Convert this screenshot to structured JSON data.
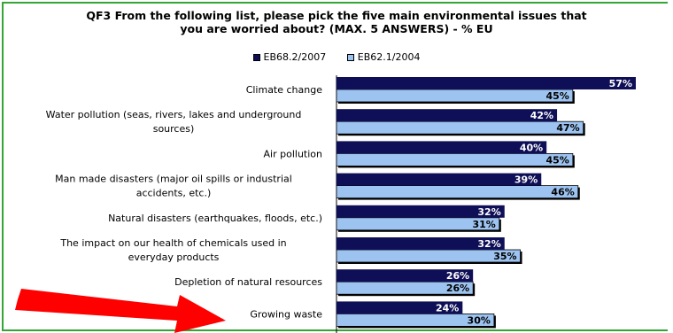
{
  "chart_data": {
    "type": "bar",
    "orientation": "horizontal",
    "title_lines": [
      "QF3 From the following list, please pick the five main environmental issues that",
      "you are worried about? (MAX. 5 ANSWERS) - % EU"
    ],
    "legend": [
      "EB68.2/2007",
      "EB62.1/2004"
    ],
    "legend_position": "top",
    "colors": {
      "EB68.2/2007": "#0f0f57",
      "EB62.1/2004": "#9dc3f0"
    },
    "categories": [
      [
        "Climate change"
      ],
      [
        "Water pollution (seas, rivers, lakes and underground",
        "sources)"
      ],
      [
        "Air pollution"
      ],
      [
        "Man made disasters (major oil spills or industrial",
        "accidents, etc.)"
      ],
      [
        "Natural disasters (earthquakes, floods, etc.)"
      ],
      [
        "The impact on our health of chemicals used in",
        "everyday products"
      ],
      [
        "Depletion of natural resources"
      ],
      [
        "Growing waste"
      ]
    ],
    "series": [
      {
        "name": "EB68.2/2007",
        "values": [
          57,
          42,
          40,
          39,
          32,
          32,
          26,
          24
        ]
      },
      {
        "name": "EB62.1/2004",
        "values": [
          45,
          47,
          45,
          46,
          31,
          35,
          26,
          30
        ]
      }
    ],
    "value_suffix": "%",
    "xlim": [
      0,
      57
    ],
    "grid": false,
    "annotation": {
      "type": "arrow",
      "color": "#ff0000",
      "points_to": "Growing waste"
    }
  }
}
